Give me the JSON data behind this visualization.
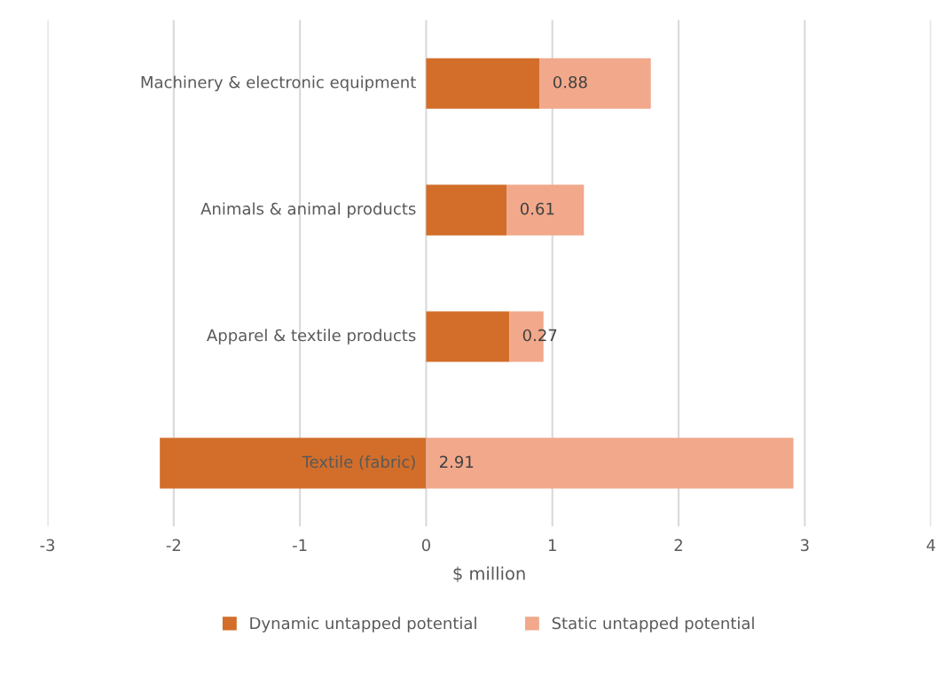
{
  "chart_data": {
    "type": "bar",
    "orientation": "horizontal",
    "stacked": true,
    "categories": [
      "Machinery & electronic equipment",
      "Animals & animal products",
      "Apparel & textile products",
      "Textile (fabric)"
    ],
    "series": [
      {
        "name": "Dynamic untapped potential",
        "color": "#d26e2a",
        "values": [
          0.9,
          0.64,
          0.66,
          -2.11
        ]
      },
      {
        "name": "Static untapped potential",
        "color": "#f1a88b",
        "values": [
          0.88,
          0.61,
          0.27,
          2.91
        ],
        "value_labels": [
          "0.88",
          "0.61",
          "0.27",
          "2.91"
        ]
      }
    ],
    "xlabel": "$ million",
    "xlim": [
      -3,
      4
    ],
    "xticks": [
      -3,
      -2,
      -1,
      0,
      1,
      2,
      3,
      4
    ],
    "grid": "x",
    "legend": "bottom"
  }
}
